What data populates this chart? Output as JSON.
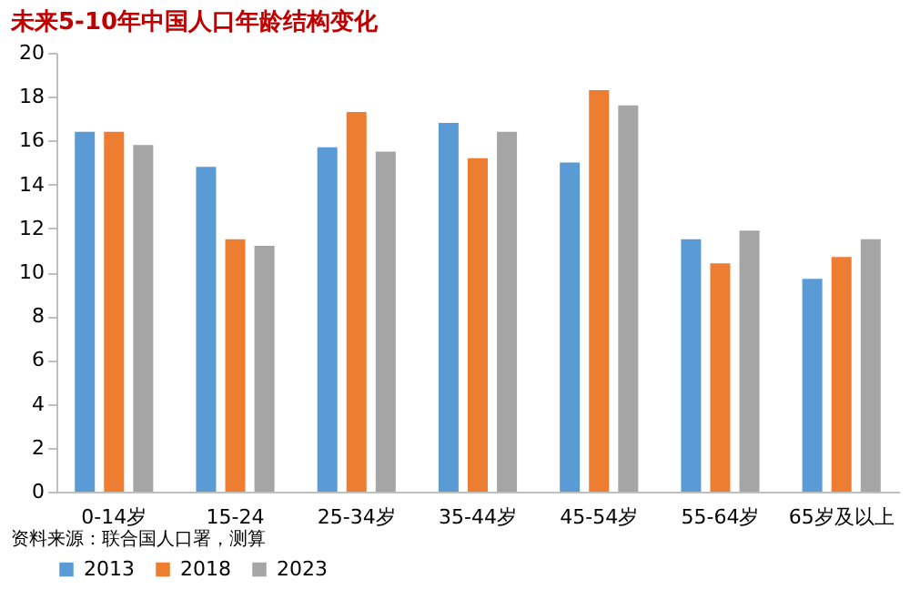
{
  "chart_data": {
    "type": "bar",
    "title": "未来5-10年中国人口年龄结构变化",
    "categories": [
      "0-14岁",
      "15-24",
      "25-34岁",
      "35-44岁",
      "45-54岁",
      "55-64岁",
      "65岁及以上"
    ],
    "series": [
      {
        "name": "2013",
        "color": "#5b9bd5",
        "values": [
          16.4,
          14.8,
          15.7,
          16.8,
          15.0,
          11.5,
          9.7
        ]
      },
      {
        "name": "2018",
        "color": "#ed7d31",
        "values": [
          16.4,
          11.5,
          17.3,
          15.2,
          18.3,
          10.4,
          10.7
        ]
      },
      {
        "name": "2023",
        "color": "#a5a5a5",
        "values": [
          15.8,
          11.2,
          15.5,
          16.4,
          17.6,
          11.9,
          11.5
        ]
      }
    ],
    "ylim": [
      0,
      20
    ],
    "yticks": [
      0,
      2,
      4,
      6,
      8,
      10,
      12,
      14,
      16,
      18,
      20
    ],
    "grid": false,
    "legend": "bottom",
    "annotations": [
      "资料来源：联合国人口署，测算"
    ]
  }
}
